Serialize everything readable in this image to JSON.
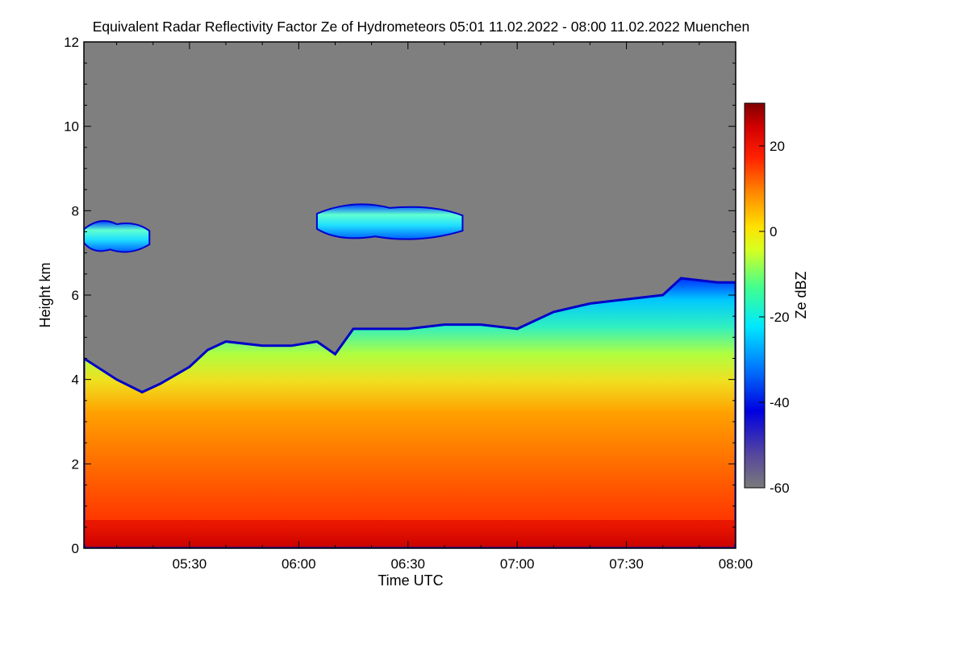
{
  "chart_data": {
    "type": "heatmap",
    "title": "Equivalent Radar Reflectivity Factor Ze of Hydrometeors   05:01 11.02.2022 - 08:00 11.02.2022 Muenchen",
    "xlabel": "Time UTC",
    "ylabel": "Height km",
    "x_ticks": [
      "05:30",
      "06:00",
      "06:30",
      "07:00",
      "07:30",
      "08:00"
    ],
    "x_range": [
      "05:01",
      "08:00"
    ],
    "y_ticks": [
      0,
      2,
      4,
      6,
      8,
      10,
      12
    ],
    "ylim": [
      0,
      12
    ],
    "colorbar": {
      "label": "Ze dBZ",
      "ticks": [
        20,
        0,
        -20,
        -40,
        -60
      ],
      "range": [
        -60,
        30
      ]
    },
    "background_value": "no signal (gray)",
    "cloud_top_profile": {
      "time": [
        "05:01",
        "05:10",
        "05:17",
        "05:22",
        "05:30",
        "05:35",
        "05:40",
        "05:50",
        "05:58",
        "06:05",
        "06:10",
        "06:15",
        "06:30",
        "06:40",
        "06:50",
        "07:00",
        "07:10",
        "07:20",
        "07:30",
        "07:40",
        "07:45",
        "07:55",
        "08:00"
      ],
      "height_km": [
        4.5,
        4.0,
        3.7,
        3.9,
        4.3,
        4.7,
        4.9,
        4.8,
        4.8,
        4.9,
        4.6,
        5.2,
        5.2,
        5.3,
        5.3,
        5.2,
        5.6,
        5.8,
        5.9,
        6.0,
        6.4,
        6.3,
        6.3
      ]
    },
    "upper_layers": [
      {
        "time_start": "05:01",
        "time_end": "05:19",
        "base_km": 7.0,
        "top_km": 7.8
      },
      {
        "time_start": "06:05",
        "time_end": "06:45",
        "base_km": 7.3,
        "top_km": 8.2
      }
    ]
  }
}
